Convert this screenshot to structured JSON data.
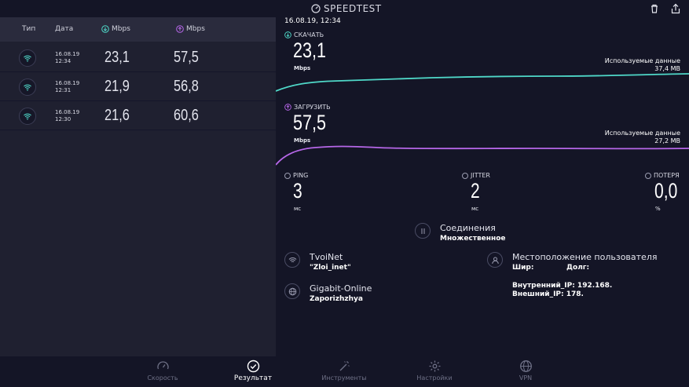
{
  "header": {
    "app_title": "SPEEDTEST"
  },
  "history": {
    "columns": {
      "type": "Тип",
      "date": "Дата",
      "download": "Mbps",
      "upload": "Mbps"
    },
    "rows": [
      {
        "date": "16.08.19",
        "time": "12:34",
        "download": "23,1",
        "upload": "57,5"
      },
      {
        "date": "16.08.19",
        "time": "12:31",
        "download": "21,9",
        "upload": "56,8"
      },
      {
        "date": "16.08.19",
        "time": "12:30",
        "download": "21,6",
        "upload": "60,6"
      }
    ]
  },
  "detail": {
    "timestamp": "16.08.19, 12:34",
    "download": {
      "label": "СКАЧАТЬ",
      "value": "23,1",
      "unit": "Mbps",
      "used_label": "Используемые данные",
      "used_value": "37,4 MB",
      "color": "#4fd8c8"
    },
    "upload": {
      "label": "ЗАГРУЗИТЬ",
      "value": "57,5",
      "unit": "Mbps",
      "used_label": "Используемые данные",
      "used_value": "27,2 MB",
      "color": "#b667e8"
    },
    "ping": {
      "label": "PING",
      "value": "3",
      "unit": "мс"
    },
    "jitter": {
      "label": "JITTER",
      "value": "2",
      "unit": "мс"
    },
    "loss": {
      "label": "ПОТЕРЯ",
      "value": "0,0",
      "unit": "%"
    },
    "connections": {
      "title": "Соединения",
      "value": "Множественное"
    },
    "provider": {
      "title": "TvoiNet",
      "value": "\"Zloi_inet\""
    },
    "server": {
      "title": "Gigabit-Online",
      "value": "Zaporizhzhya"
    },
    "location": {
      "title": "Местоположение пользователя",
      "lat_label": "Шир:",
      "lon_label": "Долг:",
      "internal_ip": "Внутренний_IP: 192.168.",
      "external_ip": "Внешний_IP: 178."
    }
  },
  "nav": {
    "speed": "Скорость",
    "results": "Результат",
    "tools": "Инструменты",
    "settings": "Настройки",
    "vpn": "VPN"
  }
}
